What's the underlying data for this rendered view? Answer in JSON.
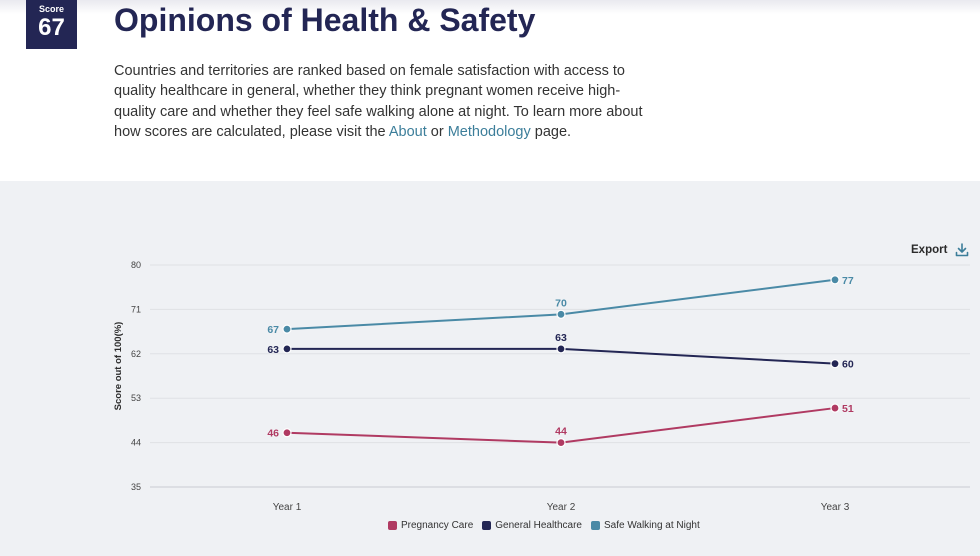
{
  "header": {
    "score_label": "Score",
    "score_value": "67",
    "title": "Opinions of Health & Safety",
    "description_before": "Countries and territories are ranked based on female satisfaction with access to quality healthcare in general, whether they think pregnant women receive high-quality care and whether they feel safe walking alone at night. To learn more about how scores are calculated, please visit the ",
    "link_about": "About",
    "description_mid": " or ",
    "link_methodology": "Methodology",
    "description_after": " page."
  },
  "export_label": "Export",
  "chart_data": {
    "type": "line",
    "title": "",
    "xlabel": "",
    "ylabel": "Score out of 100(%)",
    "categories": [
      "Year 1",
      "Year 2",
      "Year 3"
    ],
    "ylim": [
      35,
      80
    ],
    "yticks": [
      35,
      44,
      53,
      62,
      71,
      80
    ],
    "grid": true,
    "legend_position": "bottom-center",
    "series": [
      {
        "name": "Pregnancy Care",
        "color": "#b03a62",
        "values": [
          46,
          44,
          51
        ]
      },
      {
        "name": "General Healthcare",
        "color": "#232654",
        "values": [
          63,
          63,
          60
        ]
      },
      {
        "name": "Safe Walking at Night",
        "color": "#4a8aa6",
        "values": [
          67,
          70,
          77
        ]
      }
    ]
  }
}
